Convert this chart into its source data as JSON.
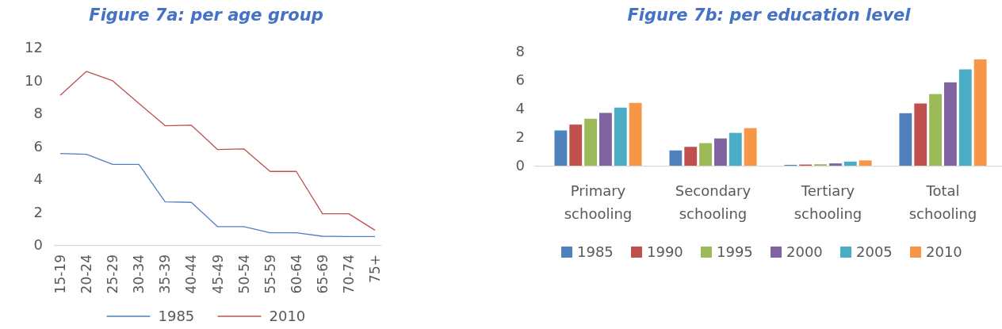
{
  "chart_data": [
    {
      "type": "line",
      "title": "Figure 7a: per age group",
      "categories": [
        "15-19",
        "20-24",
        "25-29",
        "30-34",
        "35-39",
        "40-44",
        "45-49",
        "50-54",
        "55-59",
        "60-64",
        "65-69",
        "70-74",
        "75+"
      ],
      "series": [
        {
          "name": "1985",
          "color": "#4f81bd",
          "values": [
            5.56,
            5.51,
            4.9,
            4.9,
            2.62,
            2.59,
            1.11,
            1.11,
            0.74,
            0.74,
            0.53,
            0.51,
            0.51
          ]
        },
        {
          "name": "2010",
          "color": "#c0504d",
          "values": [
            9.1,
            10.55,
            9.98,
            8.6,
            7.25,
            7.28,
            5.8,
            5.84,
            4.47,
            4.47,
            1.9,
            1.9,
            0.9
          ]
        }
      ],
      "ylim": [
        0,
        12
      ],
      "yticks": [
        0,
        2,
        4,
        6,
        8,
        10,
        12
      ],
      "grid": false,
      "legend": "bottom",
      "marker": "none",
      "line_style": "solid"
    },
    {
      "type": "bar",
      "title": "Figure 7b: per education level",
      "categories": [
        "Primary schooling",
        "Secondary schooling",
        "Tertiary schooling",
        "Total schooling"
      ],
      "series": [
        {
          "name": "1985",
          "color": "#4f81bd",
          "values": [
            2.47,
            1.07,
            0.06,
            3.68
          ]
        },
        {
          "name": "1990",
          "color": "#c0504d",
          "values": [
            2.88,
            1.32,
            0.08,
            4.36
          ]
        },
        {
          "name": "1995",
          "color": "#9bbb59",
          "values": [
            3.29,
            1.58,
            0.1,
            5.02
          ]
        },
        {
          "name": "2000",
          "color": "#8064a2",
          "values": [
            3.7,
            1.91,
            0.16,
            5.84
          ]
        },
        {
          "name": "2005",
          "color": "#4bacc6",
          "values": [
            4.07,
            2.3,
            0.29,
            6.75
          ]
        },
        {
          "name": "2010",
          "color": "#f79646",
          "values": [
            4.4,
            2.63,
            0.37,
            7.45
          ]
        }
      ],
      "ylim": [
        0,
        8
      ],
      "yticks": [
        0,
        2,
        4,
        6,
        8
      ],
      "grid": false,
      "legend": "bottom"
    }
  ]
}
